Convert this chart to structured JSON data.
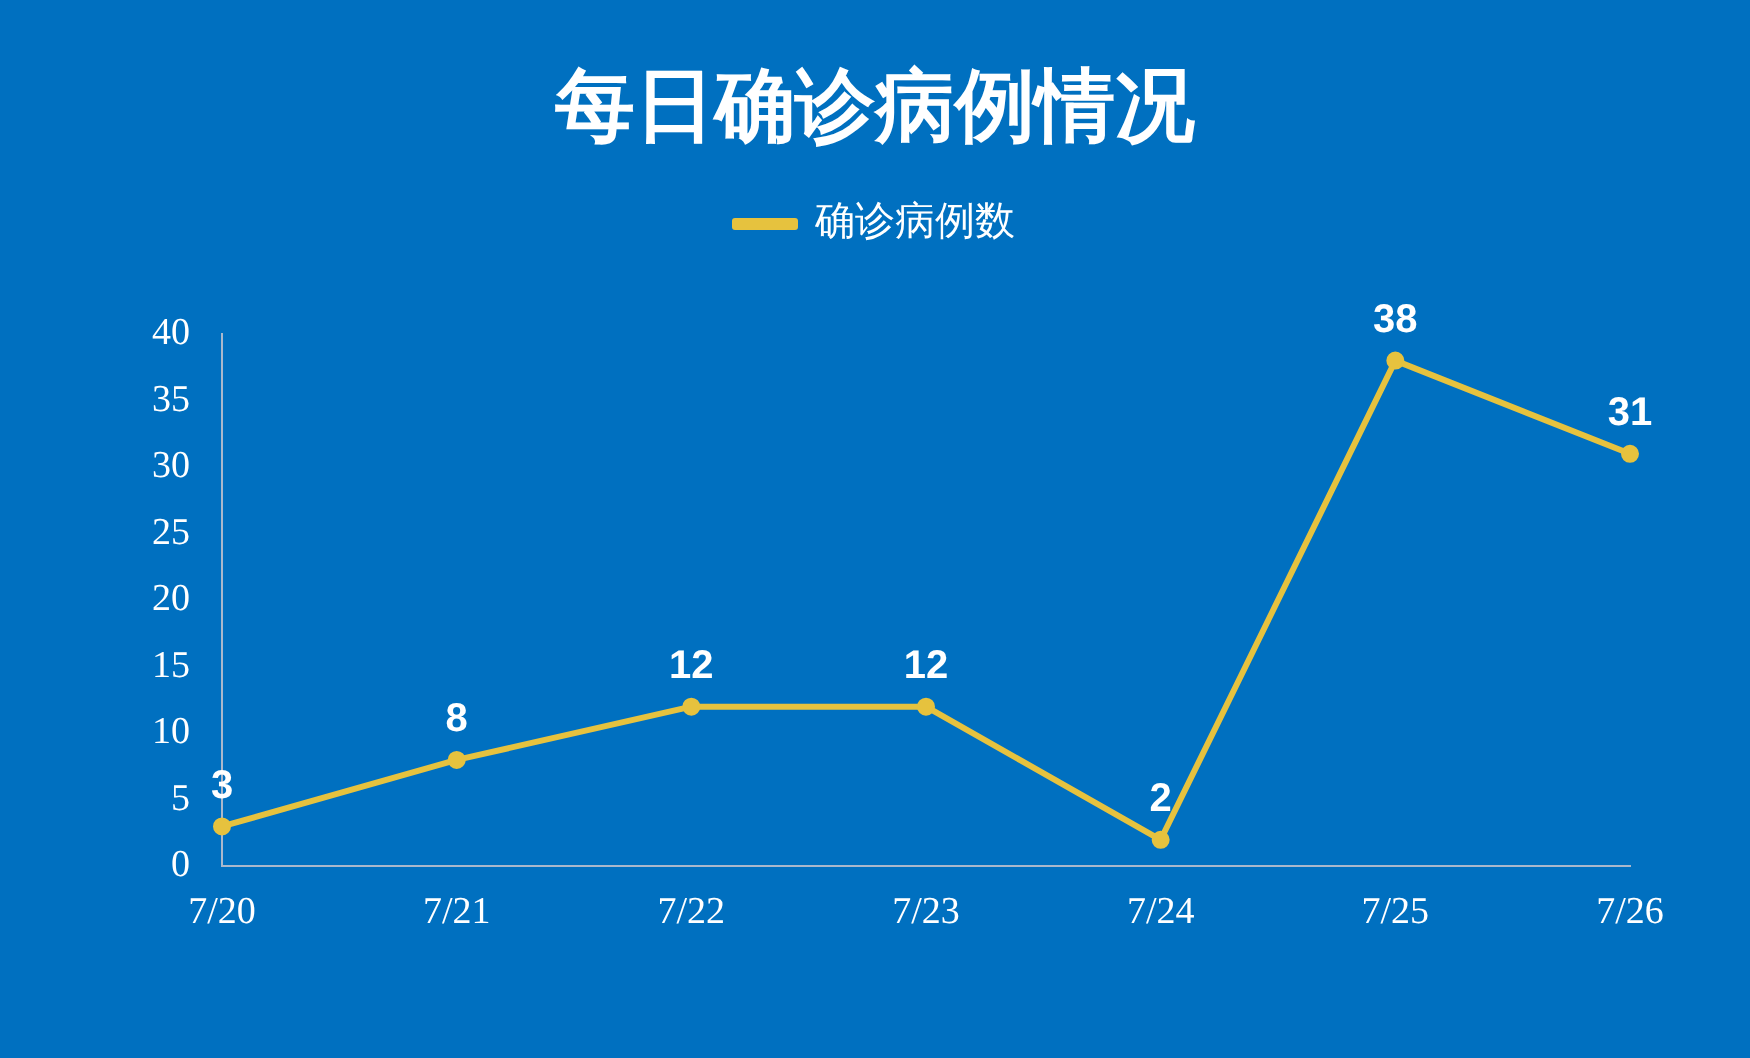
{
  "chart_data": {
    "type": "line",
    "title": "每日确诊病例情况",
    "categories": [
      "7/20",
      "7/21",
      "7/22",
      "7/23",
      "7/24",
      "7/25",
      "7/26"
    ],
    "series": [
      {
        "name": "确诊病例数",
        "color": "#e6c23e",
        "values": [
          3,
          8,
          12,
          12,
          2,
          38,
          31
        ]
      }
    ],
    "ylim": [
      0,
      40
    ],
    "yticks": [
      0,
      5,
      10,
      15,
      20,
      25,
      30,
      35,
      40
    ],
    "grid": false,
    "legend": "top",
    "marker": "circle",
    "line_style": "solid",
    "data_labels": true
  }
}
